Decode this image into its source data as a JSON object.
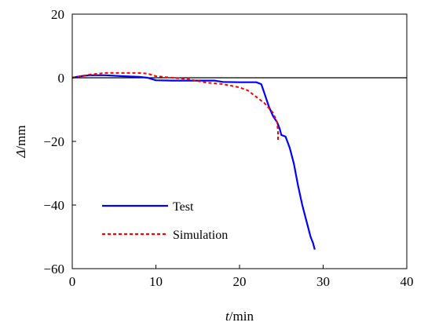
{
  "chart_data": {
    "type": "line",
    "xlabel": {
      "var": "t",
      "unit": "/min"
    },
    "ylabel": {
      "var": "Δ",
      "unit": "/mm"
    },
    "xlim": [
      0,
      40
    ],
    "ylim": [
      -60,
      20
    ],
    "xticks": [
      "0",
      "10",
      "20",
      "30",
      "40"
    ],
    "yticks": [
      "20",
      "0",
      "−20",
      "−40",
      "−60"
    ],
    "grid": false,
    "legend_position": "bottom-left",
    "reference_line_y": 0,
    "series": [
      {
        "name": "Test",
        "color": "#0000ff",
        "style": "solid",
        "x": [
          0,
          1,
          2,
          4,
          6,
          8,
          9,
          10,
          12,
          14,
          16,
          17,
          18,
          20,
          21,
          22,
          22.6,
          23,
          23.5,
          24,
          24.5,
          24.8,
          25,
          25.5,
          26,
          26.5,
          27,
          27.5,
          28,
          28.5,
          28.8,
          29
        ],
        "y": [
          0,
          0.5,
          0.8,
          0.8,
          0.5,
          0.3,
          0,
          -0.8,
          -0.9,
          -0.9,
          -0.9,
          -0.9,
          -1.3,
          -1.4,
          -1.4,
          -1.4,
          -2,
          -5,
          -9,
          -12,
          -14,
          -16,
          -18,
          -18.5,
          -22,
          -27,
          -34,
          -40,
          -45,
          -50,
          -52,
          -54
        ]
      },
      {
        "name": "Simulation",
        "color": "#ff0000",
        "style": "dotted",
        "x": [
          0,
          2,
          4,
          6,
          8,
          9,
          10,
          12,
          14,
          16,
          18,
          20,
          21,
          22,
          23,
          24,
          24.5,
          24.6,
          24.6
        ],
        "y": [
          0,
          1,
          1.5,
          1.5,
          1.5,
          1.3,
          0.5,
          0,
          -0.5,
          -1.5,
          -2,
          -3,
          -4,
          -6,
          -8,
          -11,
          -14,
          -17,
          -20
        ]
      }
    ]
  }
}
